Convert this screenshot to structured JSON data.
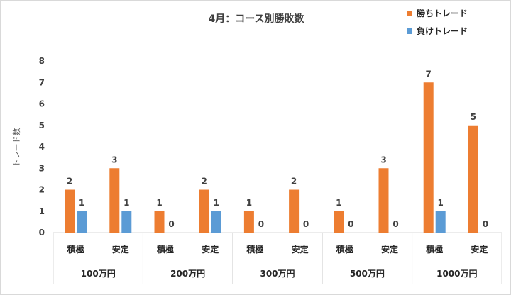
{
  "chart_data": {
    "type": "bar",
    "title": "4月：コース別勝敗数",
    "ylabel": "トレード数",
    "xlabel": "",
    "ylim": [
      0,
      8
    ],
    "yticks": [
      0,
      1,
      2,
      3,
      4,
      5,
      6,
      7,
      8
    ],
    "grid": false,
    "legend_position": "top-right",
    "groups": [
      {
        "label": "100万円",
        "categories": [
          "積極",
          "安定"
        ]
      },
      {
        "label": "200万円",
        "categories": [
          "積極",
          "安定"
        ]
      },
      {
        "label": "300万円",
        "categories": [
          "積極",
          "安定"
        ]
      },
      {
        "label": "500万円",
        "categories": [
          "積極",
          "安定"
        ]
      },
      {
        "label": "1000万円",
        "categories": [
          "積極",
          "安定"
        ]
      }
    ],
    "series": [
      {
        "name": "勝ちトレード",
        "color": "#ed7d31",
        "values": [
          2,
          3,
          1,
          2,
          1,
          2,
          1,
          3,
          7,
          5
        ]
      },
      {
        "name": "負けトレード",
        "color": "#5b9bd5",
        "values": [
          1,
          1,
          0,
          1,
          0,
          0,
          0,
          0,
          1,
          0
        ]
      }
    ]
  }
}
